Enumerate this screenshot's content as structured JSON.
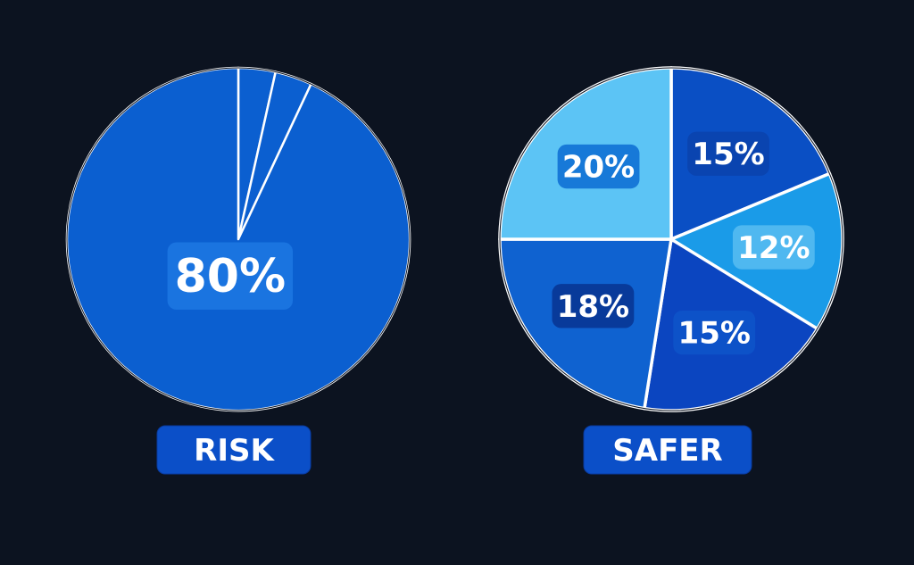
{
  "chart_data": [
    {
      "type": "pie",
      "title": "RISK",
      "values": [
        3,
        3,
        80
      ],
      "value_labels": [
        null,
        null,
        "80%"
      ],
      "colors": [
        "#0b5fd0",
        "#0b5fd0",
        "#0b5fd0"
      ],
      "label_colors": [
        null,
        null,
        "#1a74e0"
      ],
      "title_color": "#0b4fc8"
    },
    {
      "type": "pie",
      "title": "SAFER",
      "values": [
        15,
        12,
        15,
        18,
        20
      ],
      "value_labels": [
        "15%",
        "12%",
        "15%",
        "18%",
        "20%"
      ],
      "colors": [
        "#0a4fc4",
        "#1a9be8",
        "#0b45c0",
        "#0f62d0",
        "#5cc4f5"
      ],
      "label_colors": [
        "#0a44b0",
        "#4fb8f0",
        "#0d52c8",
        "#083a9a",
        "#1779d8"
      ],
      "title_color": "#0b4fc8"
    }
  ]
}
